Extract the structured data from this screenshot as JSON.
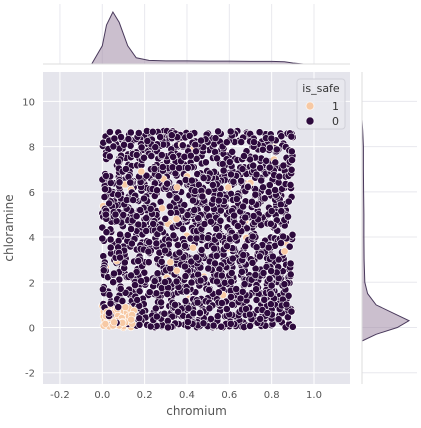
{
  "chart_data": {
    "type": "scatter",
    "subtype": "jointplot",
    "xlabel": "chromium",
    "ylabel": "chloramine",
    "xlim": [
      -0.28,
      1.17
    ],
    "ylim": [
      -2.5,
      11.3
    ],
    "xticks": [
      -0.2,
      0.0,
      0.2,
      0.4,
      0.6,
      0.8,
      1.0
    ],
    "xtick_labels": [
      "-0.2",
      "0.0",
      "0.2",
      "0.4",
      "0.6",
      "0.8",
      "1.0"
    ],
    "yticks": [
      -2,
      0,
      2,
      4,
      6,
      8,
      10
    ],
    "ytick_labels": [
      "-2",
      "0",
      "2",
      "4",
      "6",
      "8",
      "10"
    ],
    "grid": true,
    "legend": {
      "title": "is_safe",
      "placement": "top-right",
      "entries": [
        {
          "label": "1",
          "color": "#f7c9a4"
        },
        {
          "label": "0",
          "color": "#2d0a3d"
        }
      ]
    },
    "point_cloud": {
      "x_range": [
        0.0,
        0.9
      ],
      "y_range": [
        0.0,
        8.7
      ],
      "note_safe_points": "class 1 concentrated at chromium 0.0-0.15 and chloramine 0-1"
    },
    "marginal_x": {
      "description": "KDE of chromium, peak near 0.05, low flat tail to 0.9",
      "x": [
        -0.05,
        0.0,
        0.02,
        0.05,
        0.08,
        0.12,
        0.16,
        0.22,
        0.3,
        0.4,
        0.5,
        0.6,
        0.7,
        0.8,
        0.86,
        0.9,
        0.95
      ],
      "density": [
        0.0,
        0.35,
        0.75,
        1.0,
        0.8,
        0.35,
        0.12,
        0.07,
        0.06,
        0.06,
        0.055,
        0.055,
        0.05,
        0.05,
        0.045,
        0.02,
        0.0
      ]
    },
    "marginal_y": {
      "description": "KDE of chloramine, peak near 0.3, low tail to 8.7",
      "y": [
        -0.6,
        -0.3,
        0.0,
        0.3,
        0.6,
        1.0,
        1.5,
        2.0,
        3.0,
        4.0,
        5.0,
        6.0,
        7.0,
        8.0,
        8.7,
        9.2
      ],
      "density": [
        0.0,
        0.3,
        0.75,
        1.0,
        0.7,
        0.3,
        0.12,
        0.06,
        0.045,
        0.04,
        0.04,
        0.035,
        0.03,
        0.03,
        0.015,
        0.0
      ]
    },
    "colors": {
      "panel_bg": "#e5e5ec",
      "grid": "#ffffff",
      "unsafe": "#2d0a3d",
      "safe": "#f7c9a4",
      "kde_line": "#4a3a5c",
      "kde_fill": "#a08aa6",
      "text": "#555555"
    }
  }
}
